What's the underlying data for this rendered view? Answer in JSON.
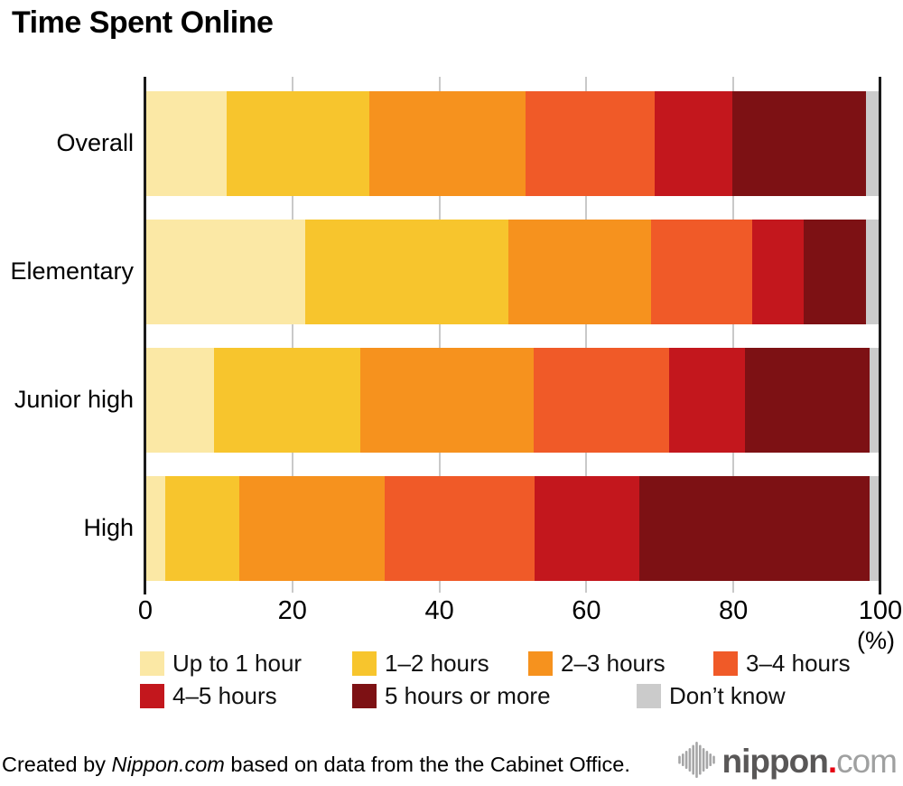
{
  "title": "Time Spent Online",
  "chart_data": {
    "type": "bar",
    "stacked": true,
    "orientation": "horizontal",
    "title": "Time Spent Online",
    "unit_label": "(%)",
    "categories": [
      "Overall",
      "Elementary",
      "Junior high",
      "High"
    ],
    "x_ticks": [
      0,
      20,
      40,
      60,
      80,
      100
    ],
    "xlim": [
      0,
      100
    ],
    "grid": "vertical",
    "legend_position": "bottom",
    "series": [
      {
        "name": "Up to 1 hour",
        "color": "#fbe8a5",
        "values": [
          11.1,
          21.8,
          9.3,
          2.7
        ]
      },
      {
        "name": "1–2 hours",
        "color": "#f7c52d",
        "values": [
          19.4,
          27.6,
          20.0,
          10.1
        ]
      },
      {
        "name": "2–3 hours",
        "color": "#f6921e",
        "values": [
          21.2,
          19.4,
          23.5,
          19.8
        ]
      },
      {
        "name": "3–4 hours",
        "color": "#f05a28",
        "values": [
          17.6,
          13.7,
          18.4,
          20.4
        ]
      },
      {
        "name": "4–5 hours",
        "color": "#c3171d",
        "values": [
          10.5,
          7.1,
          10.4,
          14.2
        ]
      },
      {
        "name": "5 hours or more",
        "color": "#7d1114",
        "values": [
          18.3,
          8.4,
          16.9,
          31.3
        ]
      },
      {
        "name": "Don’t know",
        "color": "#cbcbcb",
        "values": [
          1.9,
          2.0,
          1.5,
          1.5
        ]
      }
    ]
  },
  "footer": {
    "credit_prefix": "Created by ",
    "credit_source": "Nippon.com",
    "credit_suffix": " based on data from the the Cabinet Office.",
    "logo": {
      "icon": "soundwave-icon",
      "name": "nippon",
      "dot": ".",
      "tld": "com",
      "dot_color": "#e60012"
    }
  }
}
